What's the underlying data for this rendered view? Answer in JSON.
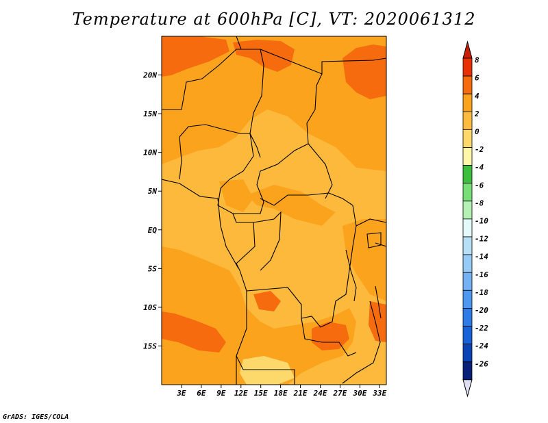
{
  "title": "Temperature at 600hPa [C], VT: 2020061312",
  "credit": "GrADS: IGES/COLA",
  "map": {
    "lon_range": [
      0,
      34
    ],
    "lat_range": [
      -20,
      25
    ],
    "lat_ticks": [
      {
        "value": 20,
        "label": "20N"
      },
      {
        "value": 15,
        "label": "15N"
      },
      {
        "value": 10,
        "label": "10N"
      },
      {
        "value": 5,
        "label": "5N"
      },
      {
        "value": 0,
        "label": "EQ"
      },
      {
        "value": -5,
        "label": "5S"
      },
      {
        "value": -10,
        "label": "10S"
      },
      {
        "value": -15,
        "label": "15S"
      }
    ],
    "lon_ticks": [
      {
        "value": 3,
        "label": "3E"
      },
      {
        "value": 6,
        "label": "6E"
      },
      {
        "value": 9,
        "label": "9E"
      },
      {
        "value": 12,
        "label": "12E"
      },
      {
        "value": 15,
        "label": "15E"
      },
      {
        "value": 18,
        "label": "18E"
      },
      {
        "value": 21,
        "label": "21E"
      },
      {
        "value": 24,
        "label": "24E"
      },
      {
        "value": 27,
        "label": "27E"
      },
      {
        "value": 30,
        "label": "30E"
      },
      {
        "value": 33,
        "label": "33E"
      }
    ],
    "colors": {
      "band_0_2": "#fdb93b",
      "band_2_4": "#fca31e",
      "band_4_6": "#f76b0f",
      "band_m2_0": "#fdd86a",
      "border": "#000000"
    }
  },
  "colorbar": {
    "bins": [
      {
        "low": 6,
        "high": 8,
        "color": "#e93005"
      },
      {
        "low": 4,
        "high": 6,
        "color": "#f76b0f"
      },
      {
        "low": 2,
        "high": 4,
        "color": "#fca31e"
      },
      {
        "low": 0,
        "high": 2,
        "color": "#fdbb40"
      },
      {
        "low": -2,
        "high": 0,
        "color": "#fdd86a"
      },
      {
        "low": -4,
        "high": -2,
        "color": "#fef6a8"
      },
      {
        "low": -6,
        "high": -4,
        "color": "#3cbf3c"
      },
      {
        "low": -8,
        "high": -6,
        "color": "#78de78"
      },
      {
        "low": -10,
        "high": -8,
        "color": "#b5f0b5"
      },
      {
        "low": -12,
        "high": -10,
        "color": "#e4f9f9"
      },
      {
        "low": -14,
        "high": -12,
        "color": "#b7e0f7"
      },
      {
        "low": -16,
        "high": -14,
        "color": "#96cbf6"
      },
      {
        "low": -18,
        "high": -16,
        "color": "#74b2f4"
      },
      {
        "low": -20,
        "high": -18,
        "color": "#4e98ef"
      },
      {
        "low": -22,
        "high": -20,
        "color": "#2c7be6"
      },
      {
        "low": -24,
        "high": -22,
        "color": "#1762d8"
      },
      {
        "low": -26,
        "high": -24,
        "color": "#0a44b4"
      },
      {
        "low": -28,
        "high": -26,
        "color": "#0a1f78"
      }
    ],
    "top_arrow_color": "#c81e04",
    "bottom_arrow_color": "#e0e0f5",
    "labels": [
      "8",
      "6",
      "4",
      "2",
      "0",
      "-2",
      "-4",
      "-6",
      "-8",
      "-10",
      "-12",
      "-14",
      "-16",
      "-18",
      "-20",
      "-22",
      "-24",
      "-26"
    ]
  }
}
